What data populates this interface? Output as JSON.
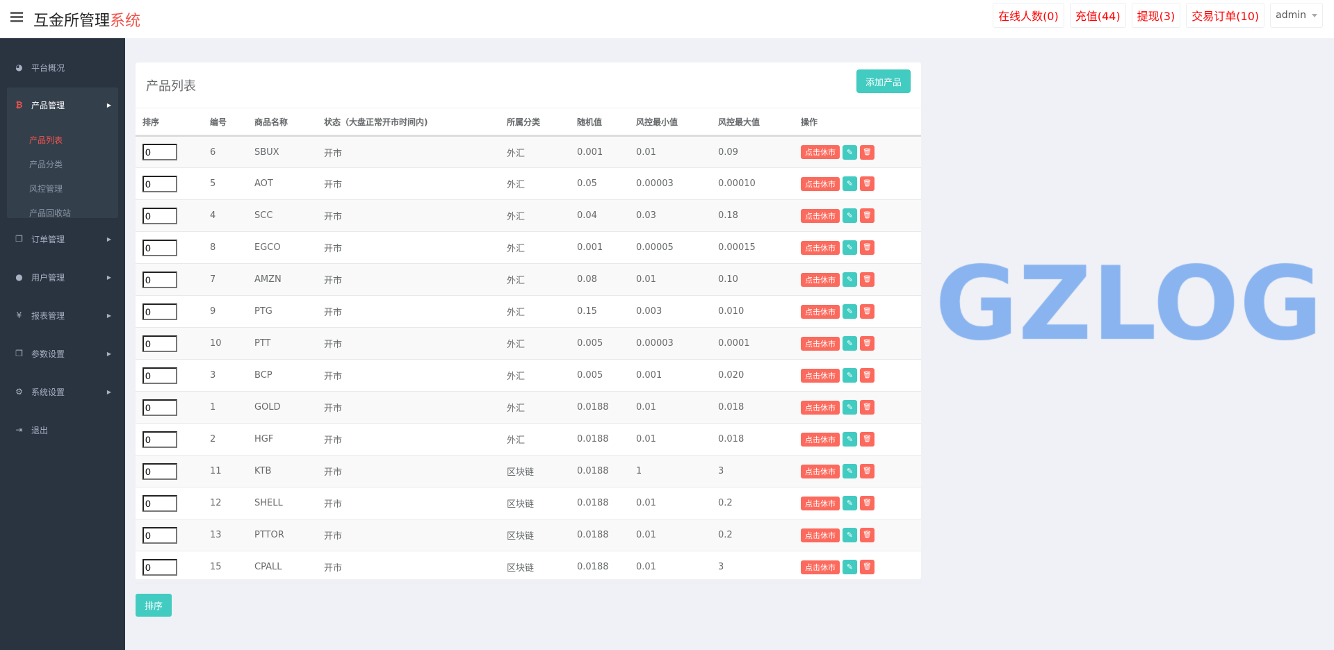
{
  "header": {
    "title_main": "互金所管理",
    "title_accent": "系统",
    "nav": [
      {
        "label": "在线人数(0)"
      },
      {
        "label": "充值(44)"
      },
      {
        "label": "提现(3)"
      },
      {
        "label": "交易订单(10)"
      }
    ],
    "user": "admin"
  },
  "sidebar": {
    "overview": "平台概况",
    "product": {
      "label": "产品管理",
      "children": [
        "产品列表",
        "产品分类",
        "风控管理",
        "产品回收站"
      ],
      "active": "产品列表"
    },
    "items": [
      {
        "label": "订单管理",
        "icon": "copy-icon"
      },
      {
        "label": "用户管理",
        "icon": "user-icon"
      },
      {
        "label": "报表管理",
        "icon": "yen-icon"
      },
      {
        "label": "参数设置",
        "icon": "copy-icon"
      },
      {
        "label": "系统设置",
        "icon": "gears-icon"
      }
    ],
    "logout": "退出"
  },
  "main": {
    "title": "产品列表",
    "add_label": "添加产品",
    "sort_label": "排序",
    "columns": [
      "排序",
      "编号",
      "商品名称",
      "状态（大盘正常开市时间内)",
      "所属分类",
      "随机值",
      "风控最小值",
      "风控最大值",
      "操作"
    ],
    "action_rest": "点击休市",
    "rows": [
      {
        "sort": "0",
        "id": "6",
        "name": "SBUX",
        "status": "开市",
        "cat": "外汇",
        "rand": "0.001",
        "min": "0.01",
        "max": "0.09"
      },
      {
        "sort": "0",
        "id": "5",
        "name": "AOT",
        "status": "开市",
        "cat": "外汇",
        "rand": "0.05",
        "min": "0.00003",
        "max": "0.00010"
      },
      {
        "sort": "0",
        "id": "4",
        "name": "SCC",
        "status": "开市",
        "cat": "外汇",
        "rand": "0.04",
        "min": "0.03",
        "max": "0.18"
      },
      {
        "sort": "0",
        "id": "8",
        "name": "EGCO",
        "status": "开市",
        "cat": "外汇",
        "rand": "0.001",
        "min": "0.00005",
        "max": "0.00015"
      },
      {
        "sort": "0",
        "id": "7",
        "name": "AMZN",
        "status": "开市",
        "cat": "外汇",
        "rand": "0.08",
        "min": "0.01",
        "max": "0.10"
      },
      {
        "sort": "0",
        "id": "9",
        "name": "PTG",
        "status": "开市",
        "cat": "外汇",
        "rand": "0.15",
        "min": "0.003",
        "max": "0.010"
      },
      {
        "sort": "0",
        "id": "10",
        "name": "PTT",
        "status": "开市",
        "cat": "外汇",
        "rand": "0.005",
        "min": "0.00003",
        "max": "0.0001"
      },
      {
        "sort": "0",
        "id": "3",
        "name": "BCP",
        "status": "开市",
        "cat": "外汇",
        "rand": "0.005",
        "min": "0.001",
        "max": "0.020"
      },
      {
        "sort": "0",
        "id": "1",
        "name": "GOLD",
        "status": "开市",
        "cat": "外汇",
        "rand": "0.0188",
        "min": "0.01",
        "max": "0.018"
      },
      {
        "sort": "0",
        "id": "2",
        "name": "HGF",
        "status": "开市",
        "cat": "外汇",
        "rand": "0.0188",
        "min": "0.01",
        "max": "0.018"
      },
      {
        "sort": "0",
        "id": "11",
        "name": "KTB",
        "status": "开市",
        "cat": "区块链",
        "rand": "0.0188",
        "min": "1",
        "max": "3"
      },
      {
        "sort": "0",
        "id": "12",
        "name": "SHELL",
        "status": "开市",
        "cat": "区块链",
        "rand": "0.0188",
        "min": "0.01",
        "max": "0.2"
      },
      {
        "sort": "0",
        "id": "13",
        "name": "PTTOR",
        "status": "开市",
        "cat": "区块链",
        "rand": "0.0188",
        "min": "0.01",
        "max": "0.2"
      },
      {
        "sort": "0",
        "id": "15",
        "name": "CPALL",
        "status": "开市",
        "cat": "区块链",
        "rand": "0.0188",
        "min": "0.01",
        "max": "3"
      }
    ]
  },
  "watermark": "GZLOG",
  "colors": {
    "accent": "#f0544c",
    "teal": "#42cbc1",
    "danger": "#fb6a5d",
    "sidebar": "#2a3441"
  }
}
